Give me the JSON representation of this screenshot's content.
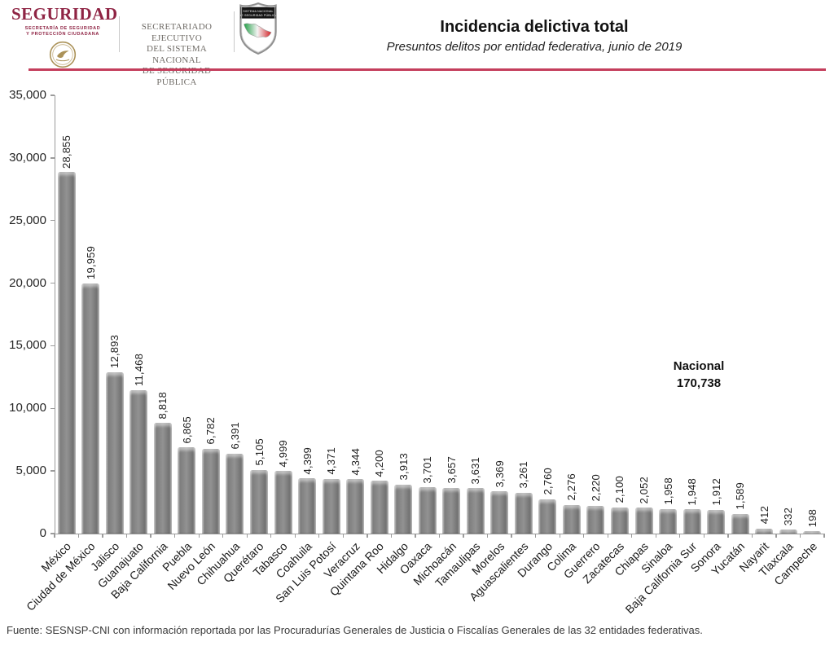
{
  "header": {
    "logo": {
      "title": "SEGURIDAD",
      "sub_line1": "SECRETARÍA DE SEGURIDAD",
      "sub_line2": "Y PROTECCIÓN CIUDADANA"
    },
    "secretariat_lines": [
      "SECRETARIADO EJECUTIVO",
      "DEL SISTEMA NACIONAL",
      "DE SEGURIDAD PÚBLICA"
    ],
    "shield": {
      "band_line1": "SISTEMA NACIONAL",
      "band_line2": "DE SEGURIDAD PÚBLICA"
    },
    "title": "Incidencia delictiva total",
    "subtitle": "Presuntos delitos por entidad federativa, junio de 2019",
    "accent_color": "#c43e5c"
  },
  "chart_data": {
    "type": "bar",
    "title": "Incidencia delictiva total",
    "xlabel": "",
    "ylabel": "",
    "ylim": [
      0,
      35000
    ],
    "ytick_step": 5000,
    "ytick_labels": [
      "0",
      "5,000",
      "10,000",
      "15,000",
      "20,000",
      "25,000",
      "30,000",
      "35,000"
    ],
    "grid": false,
    "legend": false,
    "bar_color": "#848484",
    "categories": [
      "México",
      "Ciudad de México",
      "Jalisco",
      "Guanajuato",
      "Baja California",
      "Puebla",
      "Nuevo León",
      "Chihuahua",
      "Querétaro",
      "Tabasco",
      "Coahuila",
      "San Luis Potosí",
      "Veracruz",
      "Quintana Roo",
      "Hidalgo",
      "Oaxaca",
      "Michoacán",
      "Tamaulipas",
      "Morelos",
      "Aguascalientes",
      "Durango",
      "Colima",
      "Guerrero",
      "Zacatecas",
      "Chiapas",
      "Sinaloa",
      "Baja California Sur",
      "Sonora",
      "Yucatán",
      "Nayarit",
      "Tlaxcala",
      "Campeche"
    ],
    "values": [
      28855,
      19959,
      12893,
      11468,
      8818,
      6865,
      6782,
      6391,
      5105,
      4999,
      4399,
      4371,
      4344,
      4200,
      3913,
      3701,
      3657,
      3631,
      3369,
      3261,
      2760,
      2276,
      2220,
      2100,
      2052,
      1958,
      1948,
      1912,
      1589,
      412,
      332,
      198
    ],
    "value_labels": [
      "28,855",
      "19,959",
      "12,893",
      "11,468",
      "8,818",
      "6,865",
      "6,782",
      "6,391",
      "5,105",
      "4,999",
      "4,399",
      "4,371",
      "4,344",
      "4,200",
      "3,913",
      "3,701",
      "3,657",
      "3,631",
      "3,369",
      "3,261",
      "2,760",
      "2,276",
      "2,220",
      "2,100",
      "2,052",
      "1,958",
      "1,948",
      "1,912",
      "1,589",
      "412",
      "332",
      "198"
    ],
    "annotation": {
      "label": "Nacional",
      "value": "170,738"
    }
  },
  "footer": {
    "source": "Fuente: SESNSP-CNI con información reportada por las Procuradurías Generales de Justicia o Fiscalías Generales de las 32 entidades federativas."
  }
}
